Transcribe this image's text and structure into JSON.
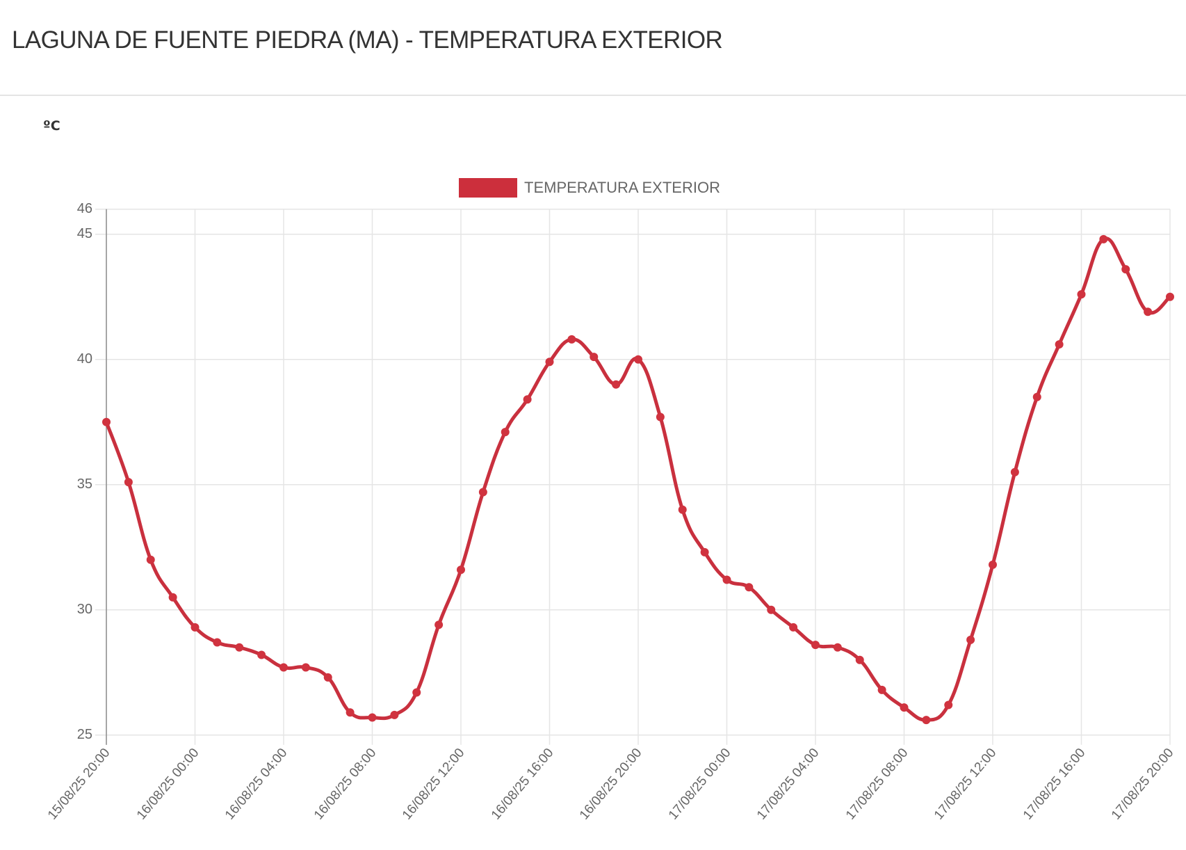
{
  "header": {
    "title": "LAGUNA DE FUENTE PIEDRA (MA) - TEMPERATURA EXTERIOR"
  },
  "chart": {
    "unit_label": "ºC",
    "legend_label": "TEMPERATURA EXTERIOR",
    "colors": {
      "line": "#c9303e",
      "point": "#d0333f",
      "legend": "#cc2f3c",
      "grid": "#e5e5e5",
      "axis": "#9a9a9a",
      "tick_text": "#666666"
    }
  },
  "chart_data": {
    "type": "line",
    "title": "LAGUNA DE FUENTE PIEDRA (MA) - TEMPERATURA EXTERIOR",
    "xlabel": "",
    "ylabel": "ºC",
    "ylim": [
      25,
      46
    ],
    "yticks": [
      25,
      30,
      35,
      40,
      45,
      46
    ],
    "grid": true,
    "legend_position": "top",
    "x_tick_labels": [
      "15/08/25 20:00",
      "16/08/25 00:00",
      "16/08/25 04:00",
      "16/08/25 08:00",
      "16/08/25 12:00",
      "16/08/25 16:00",
      "16/08/25 20:00",
      "17/08/25 00:00",
      "17/08/25 04:00",
      "17/08/25 08:00",
      "17/08/25 12:00",
      "17/08/25 16:00",
      "17/08/25 20:00"
    ],
    "x_tick_every_hours": 4,
    "x": [
      "15/08/25 20:00",
      "15/08/25 21:00",
      "15/08/25 22:00",
      "15/08/25 23:00",
      "16/08/25 00:00",
      "16/08/25 01:00",
      "16/08/25 02:00",
      "16/08/25 03:00",
      "16/08/25 04:00",
      "16/08/25 05:00",
      "16/08/25 06:00",
      "16/08/25 07:00",
      "16/08/25 08:00",
      "16/08/25 09:00",
      "16/08/25 10:00",
      "16/08/25 11:00",
      "16/08/25 12:00",
      "16/08/25 13:00",
      "16/08/25 14:00",
      "16/08/25 15:00",
      "16/08/25 16:00",
      "16/08/25 17:00",
      "16/08/25 18:00",
      "16/08/25 19:00",
      "16/08/25 20:00",
      "16/08/25 21:00",
      "16/08/25 22:00",
      "16/08/25 23:00",
      "17/08/25 00:00",
      "17/08/25 01:00",
      "17/08/25 02:00",
      "17/08/25 03:00",
      "17/08/25 04:00",
      "17/08/25 05:00",
      "17/08/25 06:00",
      "17/08/25 07:00",
      "17/08/25 08:00",
      "17/08/25 09:00",
      "17/08/25 10:00",
      "17/08/25 11:00",
      "17/08/25 12:00",
      "17/08/25 13:00",
      "17/08/25 14:00",
      "17/08/25 15:00",
      "17/08/25 16:00",
      "17/08/25 17:00",
      "17/08/25 18:00",
      "17/08/25 19:00",
      "17/08/25 20:00"
    ],
    "series": [
      {
        "name": "TEMPERATURA EXTERIOR",
        "color": "#c9303e",
        "values": [
          37.5,
          35.1,
          32.0,
          30.5,
          29.3,
          28.7,
          28.5,
          28.2,
          27.7,
          27.7,
          27.3,
          25.9,
          25.7,
          25.8,
          26.7,
          29.4,
          31.6,
          34.7,
          37.1,
          38.4,
          39.9,
          40.8,
          40.1,
          39.0,
          40.0,
          37.7,
          34.0,
          32.3,
          31.2,
          30.9,
          30.0,
          29.3,
          28.6,
          28.5,
          28.0,
          26.8,
          26.1,
          25.6,
          26.2,
          28.8,
          31.8,
          35.5,
          38.5,
          40.6,
          42.6,
          44.8,
          43.6,
          41.9,
          42.5
        ]
      }
    ]
  }
}
